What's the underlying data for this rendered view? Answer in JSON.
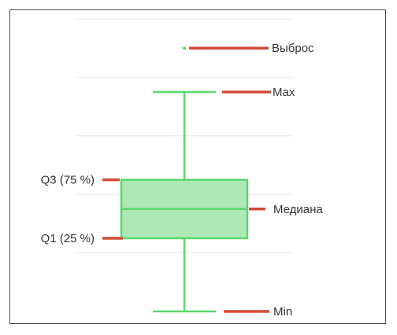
{
  "chart_data": {
    "type": "boxplot",
    "title": "",
    "grid": true,
    "box": {
      "min": 0.0,
      "q1": 2.5,
      "median": 3.5,
      "q3": 4.5,
      "max": 7.5,
      "outlier": 9.0
    },
    "annotations": {
      "outlier": "Выброс",
      "max": "Max",
      "q3": "Q3 (75 %)",
      "median": "Медиана",
      "q1": "Q1 (25 %)",
      "min": "Min"
    },
    "colors": {
      "box_fill": "#ade8b7",
      "box_stroke": "#5cd66e",
      "marker": "#d24a37",
      "grid": "#e6e6e6",
      "text": "#333333"
    }
  }
}
